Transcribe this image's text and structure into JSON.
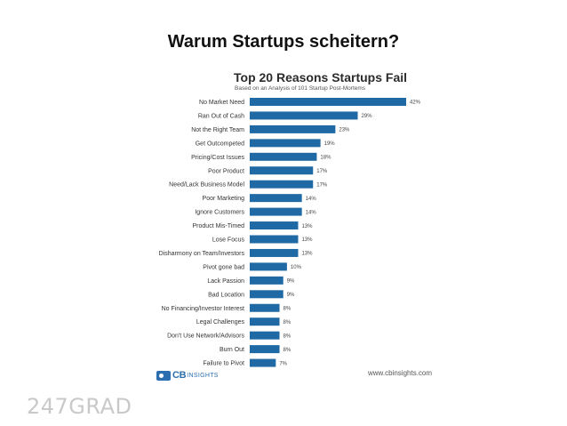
{
  "slide": {
    "title": "Warum Startups scheitern?",
    "brand": "247GRAD"
  },
  "chart_data": {
    "type": "bar",
    "orientation": "horizontal",
    "title": "Top 20 Reasons Startups Fail",
    "subtitle": "Based on an Analysis of 101 Startup Post-Mortems",
    "categories": [
      "No Market Need",
      "Ran Out of Cash",
      "Not the Right Team",
      "Get Outcompeted",
      "Pricing/Cost Issues",
      "Poor Product",
      "Need/Lack Business Model",
      "Poor Marketing",
      "Ignore Customers",
      "Product Mis-Timed",
      "Lose Focus",
      "Disharmony on Team/Investors",
      "Pivot gone bad",
      "Lack Passion",
      "Bad Location",
      "No Financing/Investor Interest",
      "Legal Challenges",
      "Don't Use Network/Advisors",
      "Burn Out",
      "Failure to Pivot"
    ],
    "values": [
      42,
      29,
      23,
      19,
      18,
      17,
      17,
      14,
      14,
      13,
      13,
      13,
      10,
      9,
      9,
      8,
      8,
      8,
      8,
      7
    ],
    "value_labels": [
      "42%",
      "29%",
      "23%",
      "19%",
      "18%",
      "17%",
      "17%",
      "14%",
      "14%",
      "13%",
      "13%",
      "13%",
      "10%",
      "9%",
      "9%",
      "8%",
      "8%",
      "8%",
      "8%",
      "7%"
    ],
    "xlim": [
      0,
      42
    ],
    "grid": false,
    "legend": "none",
    "colors": {
      "bar": "#1f6aa5",
      "label": "#333333",
      "value": "#444444"
    },
    "logo": {
      "main": "CB",
      "secondary": "INSIGHTS"
    },
    "source": "www.cbinsights.com"
  }
}
